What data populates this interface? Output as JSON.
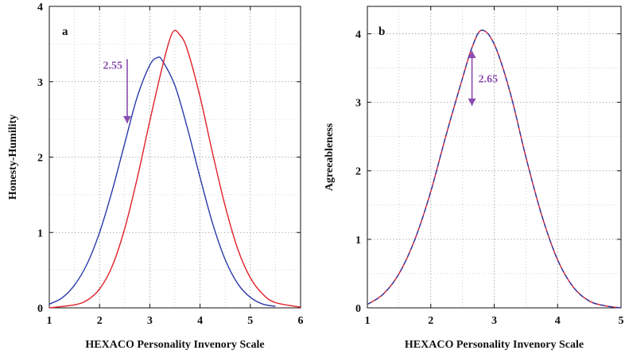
{
  "chart_data": [
    {
      "type": "line",
      "panel_label": "a",
      "xlabel": "HEXACO Personality Invenory Scale",
      "ylabel": "Honesty-Humility",
      "xlim": [
        1,
        6
      ],
      "ylim": [
        0,
        4
      ],
      "xticks": [
        "1",
        "2",
        "3",
        "4",
        "5",
        "6"
      ],
      "yticks": [
        "0",
        "1",
        "2",
        "3",
        "4"
      ],
      "grid": true,
      "series": [
        {
          "color": "#2a3aa8",
          "x": [
            1.0,
            1.25,
            1.5,
            1.75,
            2.0,
            2.25,
            2.5,
            2.75,
            3.0,
            3.15,
            3.25,
            3.5,
            3.75,
            4.0,
            4.25,
            4.5,
            4.75,
            5.0,
            5.25,
            5.5
          ],
          "y": [
            0.05,
            0.13,
            0.3,
            0.58,
            1.0,
            1.55,
            2.18,
            2.8,
            3.22,
            3.32,
            3.28,
            2.95,
            2.38,
            1.73,
            1.12,
            0.64,
            0.32,
            0.14,
            0.05,
            0.02
          ]
        },
        {
          "color": "#e0202a",
          "x": [
            1.0,
            1.5,
            1.75,
            2.0,
            2.25,
            2.5,
            2.75,
            3.0,
            3.25,
            3.45,
            3.6,
            3.75,
            4.0,
            4.25,
            4.5,
            4.75,
            5.0,
            5.25,
            5.5,
            6.0
          ],
          "y": [
            0.0,
            0.04,
            0.1,
            0.25,
            0.55,
            1.05,
            1.72,
            2.48,
            3.2,
            3.65,
            3.62,
            3.42,
            2.8,
            2.05,
            1.35,
            0.78,
            0.4,
            0.18,
            0.07,
            0.01
          ]
        }
      ],
      "annotations": [
        {
          "text": "2.55",
          "x": 2.55,
          "arrow_from": 3.3,
          "arrow_to": 2.45,
          "color": "#8a4cb0"
        }
      ]
    },
    {
      "type": "line",
      "panel_label": "b",
      "xlabel": "HEXACO Personality Invenory Scale",
      "ylabel": "Agreeableness",
      "xlim": [
        1,
        5
      ],
      "ylim": [
        0,
        4.4
      ],
      "xticks": [
        "1",
        "2",
        "3",
        "4",
        "5"
      ],
      "yticks": [
        "0",
        "1",
        "2",
        "3",
        "4"
      ],
      "grid": true,
      "series": [
        {
          "color": "#e0202a",
          "x": [
            1.0,
            1.25,
            1.5,
            1.75,
            2.0,
            2.25,
            2.5,
            2.65,
            2.8,
            3.0,
            3.25,
            3.5,
            3.75,
            4.0,
            4.25,
            4.5,
            4.75,
            5.0
          ],
          "y": [
            0.05,
            0.2,
            0.5,
            1.0,
            1.7,
            2.55,
            3.35,
            3.8,
            4.05,
            3.85,
            3.15,
            2.2,
            1.35,
            0.7,
            0.3,
            0.1,
            0.03,
            0.0
          ]
        },
        {
          "color": "#2a3aa8",
          "x": [
            1.0,
            1.25,
            1.5,
            1.75,
            2.0,
            2.25,
            2.5,
            2.65,
            2.8,
            3.0,
            3.25,
            3.5,
            3.75,
            4.0,
            4.25,
            4.5,
            4.75,
            5.0
          ],
          "y": [
            0.05,
            0.2,
            0.5,
            1.0,
            1.7,
            2.55,
            3.35,
            3.8,
            4.05,
            3.85,
            3.15,
            2.2,
            1.35,
            0.7,
            0.3,
            0.1,
            0.03,
            0.0
          ]
        }
      ],
      "annotations": [
        {
          "text": "2.65",
          "x": 2.65,
          "arrow_from": 3.75,
          "arrow_to": 2.95,
          "color": "#8a4cb0"
        }
      ]
    }
  ]
}
